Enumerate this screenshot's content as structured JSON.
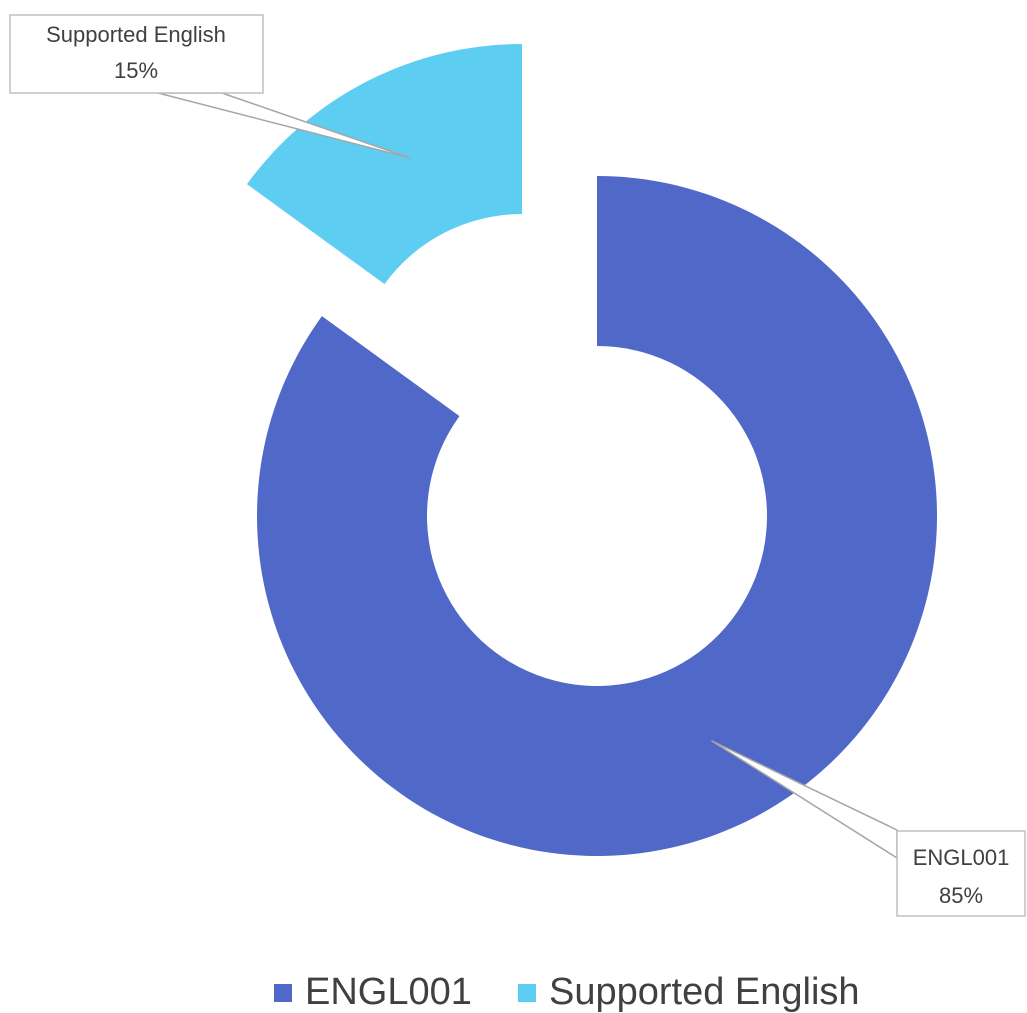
{
  "chart_data": {
    "type": "pie",
    "variant": "donut",
    "exploded": true,
    "slices": [
      {
        "label": "ENGL001",
        "value": 85,
        "display": "85%",
        "color": "#5068C8"
      },
      {
        "label": "Supported English",
        "value": 15,
        "display": "15%",
        "color": "#5ECDF2"
      }
    ],
    "legend": {
      "position": "bottom",
      "items": [
        "ENGL001",
        "Supported English"
      ]
    }
  }
}
